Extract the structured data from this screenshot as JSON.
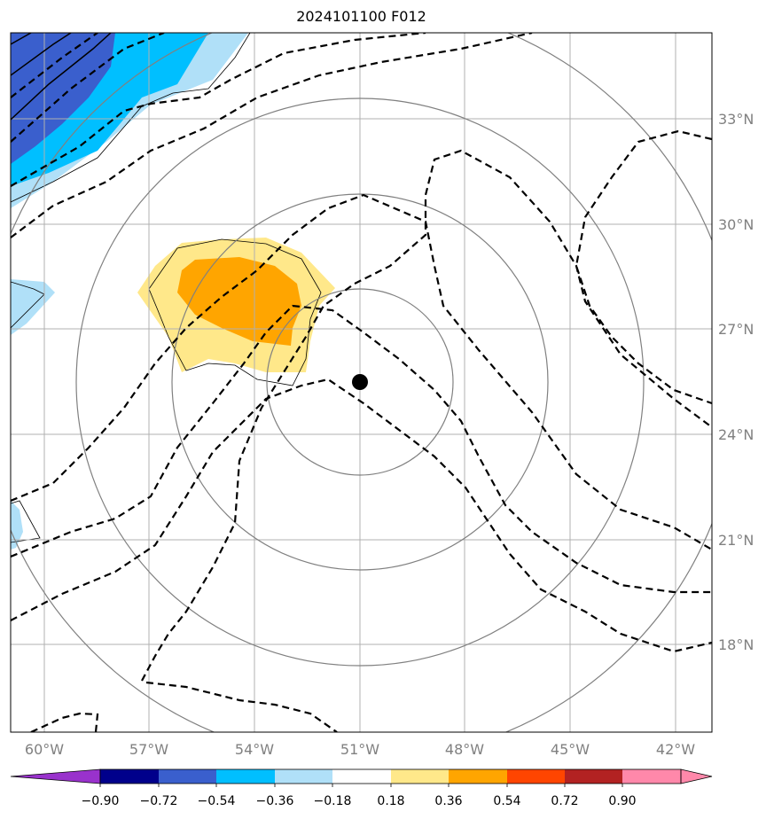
{
  "title": "2024101100 F012",
  "map": {
    "lon_labels": [
      "60°W",
      "57°W",
      "54°W",
      "51°W",
      "48°W",
      "45°W",
      "42°W"
    ],
    "lat_labels": [
      "33°N",
      "30°N",
      "27°N",
      "24°N",
      "21°N",
      "18°N"
    ],
    "storm_center": {
      "lon": -51,
      "lat": 25.4
    }
  },
  "colorbar": {
    "ticks": [
      "−0.90",
      "−0.72",
      "−0.54",
      "−0.36",
      "−0.18",
      "0.18",
      "0.36",
      "0.54",
      "0.72",
      "0.90"
    ],
    "colors": [
      "#9932cc",
      "#00008b",
      "#3a5fcd",
      "#00bfff",
      "#b0e0f8",
      "#ffffff",
      "#ffe88a",
      "#ffa500",
      "#ff4500",
      "#b22222",
      "#ff88aa"
    ]
  }
}
